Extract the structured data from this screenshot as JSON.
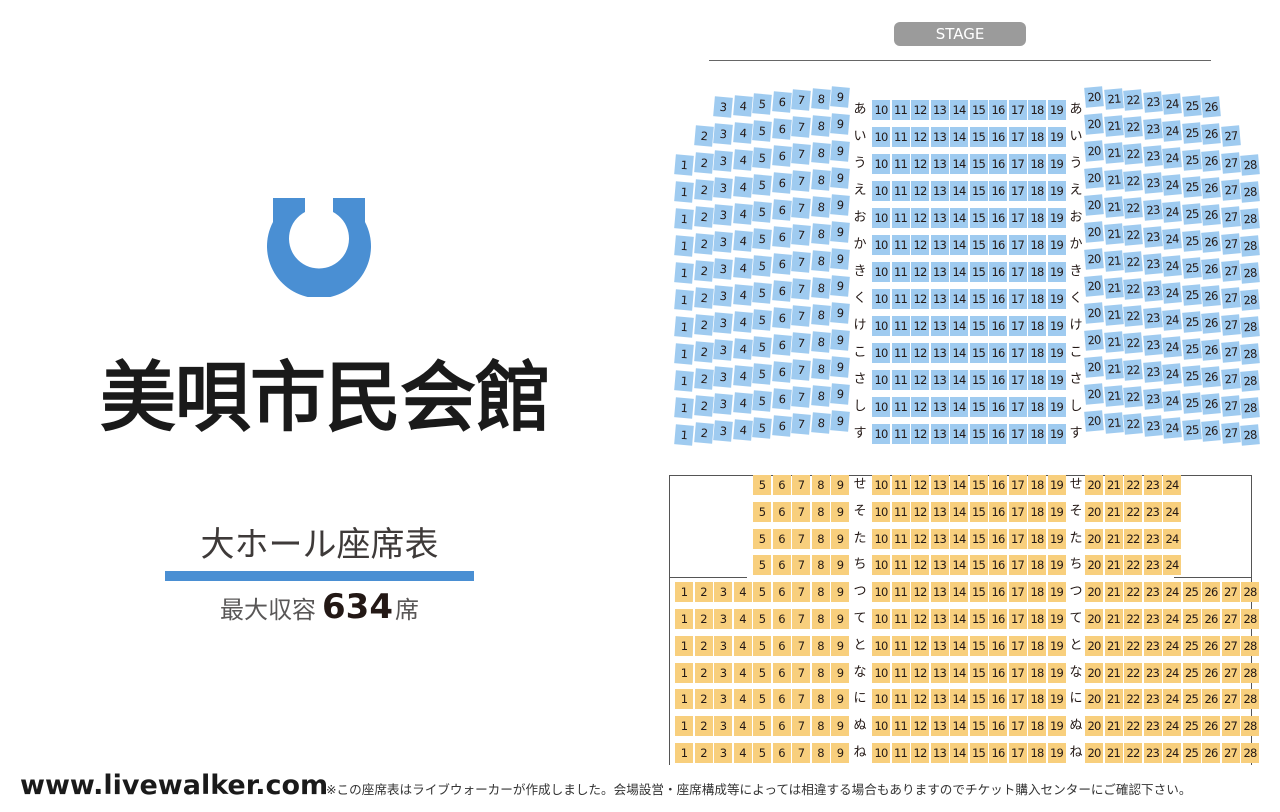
{
  "venue": {
    "name": "美唄市民会館"
  },
  "hall": {
    "name": "大ホール座席表",
    "capacity_label": "最大収容",
    "capacity_number": "634",
    "capacity_unit": "席"
  },
  "stage": {
    "label": "STAGE"
  },
  "footer": {
    "site": "www.livewalker.com",
    "disclaimer": "※この座席表はライブウォーカーが作成しました。会場設営・座席構成等によっては相違する場合もありますのでチケット購入センターにご確認下さい。"
  },
  "colors": {
    "accent": "#4a8fd3",
    "upper_seat": "#9fcbf0",
    "lower_seat": "#f8cf7d",
    "stage": "#9b9b9b"
  },
  "icons": {
    "logo": "city-emblem-icon"
  },
  "upper_rows": [
    {
      "label": "あ",
      "left": [
        3,
        9
      ],
      "right": [
        20,
        26
      ]
    },
    {
      "label": "い",
      "left": [
        2,
        9
      ],
      "right": [
        20,
        27
      ]
    },
    {
      "label": "う",
      "left": [
        1,
        9
      ],
      "right": [
        20,
        28
      ]
    },
    {
      "label": "え",
      "left": [
        1,
        9
      ],
      "right": [
        20,
        28
      ]
    },
    {
      "label": "お",
      "left": [
        1,
        9
      ],
      "right": [
        20,
        28
      ]
    },
    {
      "label": "か",
      "left": [
        1,
        9
      ],
      "right": [
        20,
        28
      ]
    },
    {
      "label": "き",
      "left": [
        1,
        9
      ],
      "right": [
        20,
        28
      ]
    },
    {
      "label": "く",
      "left": [
        1,
        9
      ],
      "right": [
        20,
        28
      ]
    },
    {
      "label": "け",
      "left": [
        1,
        9
      ],
      "right": [
        20,
        28
      ]
    },
    {
      "label": "こ",
      "left": [
        1,
        9
      ],
      "right": [
        20,
        28
      ]
    },
    {
      "label": "さ",
      "left": [
        1,
        9
      ],
      "right": [
        20,
        28
      ]
    },
    {
      "label": "し",
      "left": [
        1,
        9
      ],
      "right": [
        20,
        28
      ]
    },
    {
      "label": "す",
      "left": [
        1,
        9
      ],
      "right": [
        20,
        28
      ]
    }
  ],
  "lower_rows": [
    {
      "label": "せ",
      "left": [
        5,
        9
      ],
      "right": [
        20,
        24
      ]
    },
    {
      "label": "そ",
      "left": [
        5,
        9
      ],
      "right": [
        20,
        24
      ]
    },
    {
      "label": "た",
      "left": [
        5,
        9
      ],
      "right": [
        20,
        24
      ]
    },
    {
      "label": "ち",
      "left": [
        5,
        9
      ],
      "right": [
        20,
        24
      ]
    },
    {
      "label": "つ",
      "left": [
        1,
        9
      ],
      "right": [
        20,
        28
      ]
    },
    {
      "label": "て",
      "left": [
        1,
        9
      ],
      "right": [
        20,
        28
      ]
    },
    {
      "label": "と",
      "left": [
        1,
        9
      ],
      "right": [
        20,
        28
      ]
    },
    {
      "label": "な",
      "left": [
        1,
        9
      ],
      "right": [
        20,
        28
      ]
    },
    {
      "label": "に",
      "left": [
        1,
        9
      ],
      "right": [
        20,
        28
      ]
    },
    {
      "label": "ぬ",
      "left": [
        1,
        9
      ],
      "right": [
        20,
        28
      ]
    },
    {
      "label": "ね",
      "left": [
        1,
        9
      ],
      "right": [
        20,
        28
      ]
    }
  ],
  "center_block": [
    10,
    19
  ]
}
